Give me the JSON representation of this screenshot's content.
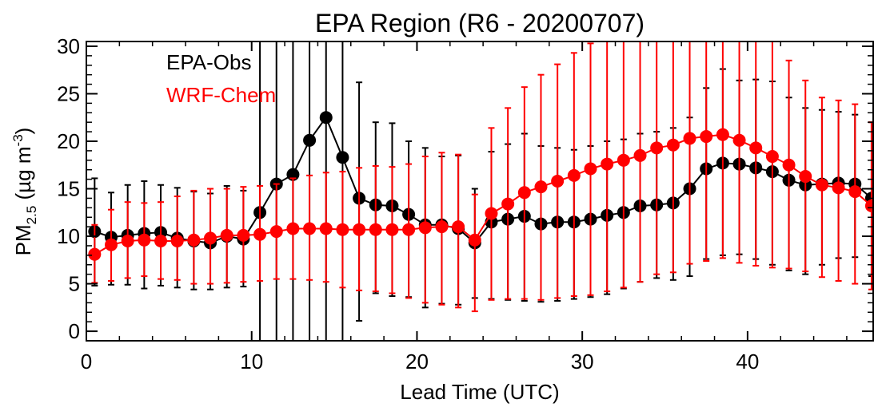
{
  "chart_data": {
    "type": "line",
    "title": "EPA Region (R6 - 20200707)",
    "xlabel": "Lead Time (UTC)",
    "ylabel": {
      "main": "PM",
      "sub": "2.5",
      "unit": " (µg m",
      "sup": "-3",
      "close": ")"
    },
    "xlim": [
      0,
      47.6
    ],
    "ylim": [
      -1,
      30.5
    ],
    "xticks": [
      0,
      10,
      20,
      30,
      40
    ],
    "yticks": [
      0,
      5,
      10,
      15,
      20,
      25,
      30
    ],
    "grid": false,
    "legend_position": "top-left",
    "x": [
      0.5,
      1.5,
      2.5,
      3.5,
      4.5,
      5.5,
      6.5,
      7.5,
      8.5,
      9.5,
      10.5,
      11.5,
      12.5,
      13.5,
      14.5,
      15.5,
      16.5,
      17.5,
      18.5,
      19.5,
      20.5,
      21.5,
      22.5,
      23.5,
      24.5,
      25.5,
      26.5,
      27.5,
      28.5,
      29.5,
      30.5,
      31.5,
      32.5,
      33.5,
      34.5,
      35.5,
      36.5,
      37.5,
      38.5,
      39.5,
      40.5,
      41.5,
      42.5,
      43.5,
      44.5,
      45.5,
      46.5,
      47.5
    ],
    "series": [
      {
        "name": "EPA-Obs",
        "color": "#000000",
        "values": [
          10.5,
          9.9,
          10.1,
          10.3,
          10.4,
          9.8,
          9.5,
          9.3,
          10.0,
          9.7,
          12.5,
          15.5,
          16.5,
          20.1,
          22.5,
          18.3,
          14.0,
          13.3,
          13.2,
          12.3,
          11.2,
          11.2,
          10.8,
          9.3,
          11.5,
          11.8,
          12.1,
          11.3,
          11.5,
          11.5,
          11.8,
          12.2,
          12.5,
          13.2,
          13.3,
          13.5,
          15.0,
          17.1,
          17.7,
          17.6,
          17.2,
          16.8,
          15.9,
          15.4,
          15.5,
          15.6,
          15.5,
          14.0
        ],
        "lower": [
          4.8,
          4.9,
          4.9,
          4.5,
          4.8,
          4.6,
          4.4,
          4.4,
          4.6,
          4.7,
          -1,
          -1,
          -1,
          -1,
          -1,
          -1,
          1.1,
          4.0,
          3.7,
          3.6,
          2.5,
          2.9,
          2.8,
          3.5,
          3.4,
          3.3,
          3.2,
          3.1,
          3.2,
          3.4,
          3.6,
          3.9,
          4.5,
          5.2,
          5.6,
          5.4,
          5.8,
          7.6,
          8.0,
          8.1,
          7.6,
          7.0,
          6.4,
          6.0,
          7.0,
          7.7,
          7.8,
          5.8
        ],
        "upper": [
          16.1,
          14.6,
          15.4,
          15.8,
          15.4,
          15.1,
          14.7,
          14.5,
          15.3,
          14.8,
          31,
          31,
          31,
          31,
          31,
          31,
          26.2,
          22.0,
          21.9,
          20.0,
          19.3,
          18.4,
          18.5,
          15.0,
          18.9,
          19.7,
          20.8,
          19.5,
          19.3,
          19.1,
          19.5,
          20.0,
          20.2,
          20.8,
          21.0,
          21.4,
          22.5,
          25.6,
          27.6,
          26.4,
          26.5,
          26.3,
          24.6,
          23.5,
          23.3,
          23.1,
          22.8,
          22.0
        ]
      },
      {
        "name": "WRF-Chem",
        "color": "#ff0000",
        "values": [
          8.1,
          9.1,
          9.5,
          9.6,
          9.5,
          9.5,
          9.6,
          9.8,
          10.1,
          10.1,
          10.2,
          10.5,
          10.8,
          10.8,
          10.8,
          10.7,
          10.7,
          10.7,
          10.7,
          10.7,
          10.9,
          11.0,
          11.0,
          9.6,
          12.4,
          13.4,
          14.6,
          15.2,
          15.8,
          16.4,
          17.1,
          17.6,
          18.0,
          18.5,
          19.3,
          19.6,
          20.3,
          20.5,
          20.7,
          20.1,
          19.3,
          18.4,
          17.5,
          16.3,
          15.4,
          15.1,
          14.7,
          13.2
        ],
        "lower": [
          5.1,
          5.3,
          5.6,
          5.8,
          5.5,
          5.4,
          5.0,
          5.0,
          5.1,
          5.2,
          5.3,
          5.5,
          5.5,
          5.4,
          5.2,
          4.6,
          4.3,
          4.2,
          4.0,
          3.5,
          3.0,
          2.8,
          2.5,
          2.1,
          3.3,
          3.4,
          3.4,
          3.3,
          3.5,
          3.7,
          3.8,
          4.2,
          4.6,
          5.2,
          6.0,
          6.2,
          7.1,
          7.4,
          7.7,
          7.2,
          6.9,
          6.7,
          6.6,
          6.3,
          5.7,
          5.3,
          5.0,
          4.4
        ],
        "upper": [
          11.2,
          12.8,
          13.6,
          13.5,
          13.6,
          14.2,
          14.8,
          15.0,
          15.0,
          15.2,
          15.3,
          15.5,
          16.1,
          16.4,
          16.7,
          16.8,
          17.2,
          17.4,
          17.3,
          17.6,
          18.4,
          18.8,
          18.6,
          14.4,
          21.4,
          23.5,
          25.7,
          27.0,
          28.1,
          29.3,
          30.3,
          31,
          31,
          31,
          31,
          31,
          31,
          31,
          31,
          31,
          31,
          31,
          28.5,
          26.4,
          24.6,
          24.3,
          23.9,
          22.0
        ]
      }
    ]
  }
}
